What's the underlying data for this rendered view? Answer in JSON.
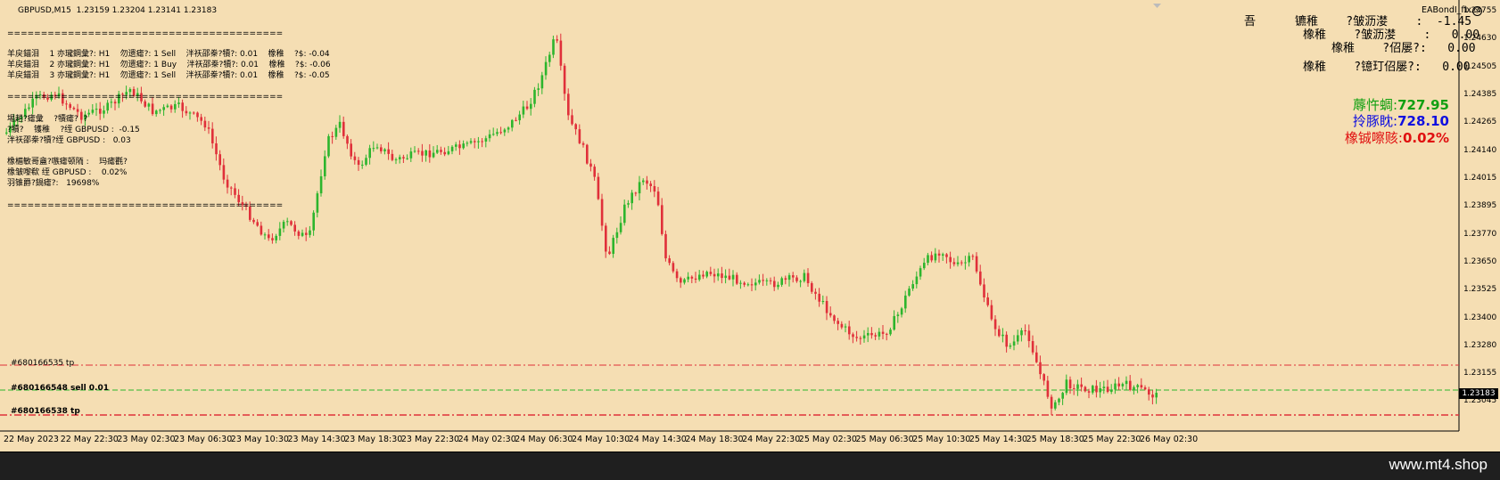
{
  "chart": {
    "symbol_header": "GBPUSD,M15  1.23159 1.23204 1.23141 1.23183",
    "ea_name": "EABondI_fix",
    "current_price": "1.23183",
    "colors": {
      "background": "#f5deb3",
      "bull_candle": "#2db52d",
      "bear_candle": "#e0303a",
      "tp_line": "#e0303a",
      "entry_line": "#2db52d",
      "profit_green": "#12a012",
      "equity_blue": "#1010e0",
      "drawdown_red": "#e01010"
    },
    "y_ticks": [
      "1.24755",
      "1.24630",
      "1.24505",
      "1.24385",
      "1.24265",
      "1.24140",
      "1.24015",
      "1.23895",
      "1.23770",
      "1.23650",
      "1.23525",
      "1.23400",
      "1.23280",
      "1.23155",
      "1.23045"
    ],
    "x_ticks": [
      "22 May 2023",
      "22 May 22:30",
      "23 May 02:30",
      "23 May 06:30",
      "23 May 10:30",
      "23 May 14:30",
      "23 May 18:30",
      "23 May 22:30",
      "24 May 02:30",
      "24 May 06:30",
      "24 May 10:30",
      "24 May 14:30",
      "24 May 18:30",
      "24 May 22:30",
      "25 May 02:30",
      "25 May 06:30",
      "25 May 10:30",
      "25 May 14:30",
      "25 May 18:30",
      "25 May 22:30",
      "26 May 02:30"
    ],
    "order_lines": {
      "tp_top": "#680166535 tp",
      "entry": "#680166548 sell 0.01",
      "tp_bottom": "#680166538 tp"
    }
  },
  "overlay_left": {
    "sep1": "=========================================",
    "row1": "羊戻錨泪    1 亦瓏鋼彙?: H1    勿遗瘧?: 1 Sell    泮祆邵桊?犢?: 0.01    橡稚    ?$: -0.04",
    "row2": "羊戻錨泪    2 亦瓏鋼彙?: H1    勿遗瘧?: 1 Buy    泮祆邵桊?犢?: 0.01    橡稚    ?$: -0.06",
    "row3": "羊戻錨泪    3 亦瓏鋼彙?: H1    勿遗瘧?: 1 Sell    泮祆邵桊?犢?: 0.01    橡稚    ?$: -0.05",
    "sep2": "=========================================",
    "l5": "埸趟?瘧彙    ?犢瘧?  ?",
    "l6": "?犢?    镬稚    ?绖 GBPUSD :  -0.15",
    "l7": "泮祆邵桊?犢?绖 GBPUSD :   0.03",
    "l8": "橡楣敏哥盦?嗾瘧顿陑 :    玛瘧氍?",
    "l9": "橡皱嚟欷 绖 GBPUSD :    0.02%",
    "l10": "羽锥爵?鍋瘧?:   19698%",
    "sep3": "========================================="
  },
  "overlay_right": {
    "r1a": "吾",
    "r1b": "镳稚    ?皱沥漤    :  -1.45",
    "r2": "橡稚    ?皱沥漤    :   0.00",
    "r3": "橡稚    ?佋屡?:   0.00",
    "r4": "橡稚    ?镱玎佋屡?:   0.00",
    "profit_label": "蓐忤蜩:",
    "profit_value": "727.95",
    "equity_label": "拎豚眈:",
    "equity_value": "728.10",
    "drawdown_label": "橡铖嚓赅:",
    "drawdown_value": "0.02%"
  },
  "footer": {
    "brand": "www.mt4.shop"
  }
}
